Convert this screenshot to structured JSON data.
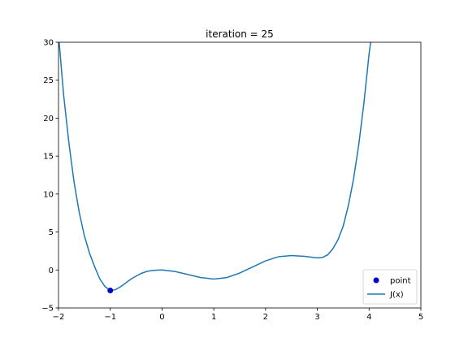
{
  "chart_data": {
    "type": "line",
    "title": "iteration = 25",
    "xlabel": "",
    "ylabel": "",
    "xlim": [
      -2,
      5
    ],
    "ylim": [
      -5,
      30
    ],
    "xticks": [
      -2,
      -1,
      0,
      1,
      2,
      3,
      4,
      5
    ],
    "yticks": [
      -5,
      0,
      5,
      10,
      15,
      20,
      25,
      30
    ],
    "xtick_labels": [
      "−2",
      "−1",
      "0",
      "1",
      "2",
      "3",
      "4",
      "5"
    ],
    "ytick_labels": [
      "−5",
      "0",
      "5",
      "10",
      "15",
      "20",
      "25",
      "30"
    ],
    "grid": false,
    "legend_position": "bottom-right",
    "series": [
      {
        "name": "J(x)",
        "kind": "line",
        "color": "#1f77b4",
        "x": [
          -2.0,
          -1.9,
          -1.8,
          -1.7,
          -1.6,
          -1.5,
          -1.4,
          -1.3,
          -1.2,
          -1.1,
          -1.0,
          -0.9,
          -0.8,
          -0.7,
          -0.6,
          -0.5,
          -0.4,
          -0.3,
          -0.2,
          -0.1,
          0.0,
          0.25,
          0.5,
          0.75,
          1.0,
          1.25,
          1.5,
          1.75,
          2.0,
          2.25,
          2.5,
          2.75,
          3.0,
          3.1,
          3.2,
          3.3,
          3.4,
          3.5,
          3.6,
          3.7,
          3.8,
          3.9,
          4.0,
          4.05
        ],
        "y": [
          31.0,
          23.0,
          16.8,
          11.6,
          7.6,
          4.5,
          2.2,
          0.4,
          -1.2,
          -2.2,
          -2.7,
          -2.6,
          -2.2,
          -1.7,
          -1.2,
          -0.8,
          -0.45,
          -0.2,
          -0.07,
          -0.02,
          0.0,
          -0.2,
          -0.6,
          -1.0,
          -1.2,
          -1.0,
          -0.4,
          0.4,
          1.2,
          1.75,
          1.9,
          1.8,
          1.6,
          1.65,
          2.0,
          2.8,
          4.0,
          5.8,
          8.5,
          12.0,
          16.5,
          22.0,
          28.5,
          31.0
        ]
      },
      {
        "name": "point",
        "kind": "scatter",
        "color": "#0000cd",
        "x": [
          -1.0
        ],
        "y": [
          -2.7
        ]
      }
    ]
  }
}
